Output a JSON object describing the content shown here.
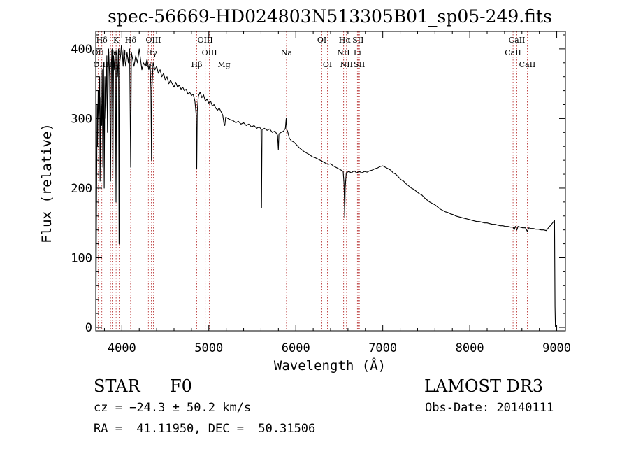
{
  "chart_data": {
    "type": "line",
    "title": "spec-56669-HD024803N513305B01_sp05-249.fits",
    "xlabel": "Wavelength (Å)",
    "ylabel": "Flux (relative)",
    "xlim": [
      3700,
      9100
    ],
    "ylim": [
      -5,
      425
    ],
    "x_ticks": [
      4000,
      5000,
      6000,
      7000,
      8000,
      9000
    ],
    "y_ticks": [
      0,
      100,
      200,
      300,
      400
    ],
    "grid": false,
    "series": [
      {
        "name": "flux",
        "points": [
          [
            3700,
            0
          ],
          [
            3704,
            60
          ],
          [
            3708,
            160
          ],
          [
            3712,
            240
          ],
          [
            3716,
            320
          ],
          [
            3720,
            260
          ],
          [
            3728,
            340
          ],
          [
            3735,
            300
          ],
          [
            3745,
            360
          ],
          [
            3750,
            210
          ],
          [
            3758,
            330
          ],
          [
            3768,
            290
          ],
          [
            3774,
            370
          ],
          [
            3782,
            230
          ],
          [
            3790,
            380
          ],
          [
            3797,
            200
          ],
          [
            3805,
            360
          ],
          [
            3815,
            300
          ],
          [
            3828,
            390
          ],
          [
            3835,
            280
          ],
          [
            3848,
            400
          ],
          [
            3860,
            360
          ],
          [
            3870,
            210
          ],
          [
            3880,
            380
          ],
          [
            3888,
            400
          ],
          [
            3897,
            215
          ],
          [
            3905,
            390
          ],
          [
            3915,
            370
          ],
          [
            3925,
            395
          ],
          [
            3933,
            180
          ],
          [
            3940,
            395
          ],
          [
            3950,
            360
          ],
          [
            3962,
            400
          ],
          [
            3968,
            120
          ],
          [
            3975,
            380
          ],
          [
            3985,
            390
          ],
          [
            3995,
            405
          ],
          [
            4005,
            395
          ],
          [
            4015,
            375
          ],
          [
            4025,
            400
          ],
          [
            4035,
            385
          ],
          [
            4045,
            375
          ],
          [
            4060,
            395
          ],
          [
            4075,
            380
          ],
          [
            4090,
            400
          ],
          [
            4102,
            230
          ],
          [
            4110,
            395
          ],
          [
            4125,
            385
          ],
          [
            4140,
            375
          ],
          [
            4160,
            390
          ],
          [
            4180,
            380
          ],
          [
            4200,
            400
          ],
          [
            4215,
            385
          ],
          [
            4230,
            370
          ],
          [
            4250,
            380
          ],
          [
            4270,
            375
          ],
          [
            4290,
            385
          ],
          [
            4310,
            370
          ],
          [
            4325,
            380
          ],
          [
            4335,
            340
          ],
          [
            4341,
            240
          ],
          [
            4347,
            345
          ],
          [
            4360,
            380
          ],
          [
            4380,
            370
          ],
          [
            4400,
            375
          ],
          [
            4420,
            365
          ],
          [
            4440,
            370
          ],
          [
            4460,
            360
          ],
          [
            4480,
            365
          ],
          [
            4500,
            355
          ],
          [
            4520,
            360
          ],
          [
            4540,
            350
          ],
          [
            4560,
            355
          ],
          [
            4580,
            350
          ],
          [
            4600,
            345
          ],
          [
            4620,
            352
          ],
          [
            4640,
            345
          ],
          [
            4660,
            348
          ],
          [
            4680,
            342
          ],
          [
            4700,
            345
          ],
          [
            4720,
            340
          ],
          [
            4740,
            342
          ],
          [
            4760,
            335
          ],
          [
            4780,
            338
          ],
          [
            4800,
            333
          ],
          [
            4820,
            335
          ],
          [
            4840,
            325
          ],
          [
            4855,
            305
          ],
          [
            4861,
            228
          ],
          [
            4867,
            310
          ],
          [
            4880,
            332
          ],
          [
            4900,
            338
          ],
          [
            4920,
            330
          ],
          [
            4940,
            334
          ],
          [
            4960,
            325
          ],
          [
            4980,
            328
          ],
          [
            5000,
            322
          ],
          [
            5020,
            325
          ],
          [
            5040,
            318
          ],
          [
            5060,
            320
          ],
          [
            5080,
            315
          ],
          [
            5100,
            312
          ],
          [
            5120,
            315
          ],
          [
            5140,
            310
          ],
          [
            5160,
            305
          ],
          [
            5175,
            292
          ],
          [
            5183,
            290
          ],
          [
            5195,
            302
          ],
          [
            5220,
            300
          ],
          [
            5250,
            298
          ],
          [
            5280,
            297
          ],
          [
            5310,
            294
          ],
          [
            5340,
            296
          ],
          [
            5370,
            292
          ],
          [
            5400,
            294
          ],
          [
            5430,
            290
          ],
          [
            5460,
            292
          ],
          [
            5490,
            288
          ],
          [
            5520,
            290
          ],
          [
            5550,
            286
          ],
          [
            5580,
            288
          ],
          [
            5600,
            285
          ],
          [
            5606,
            172
          ],
          [
            5612,
            284
          ],
          [
            5640,
            286
          ],
          [
            5670,
            283
          ],
          [
            5700,
            285
          ],
          [
            5730,
            280
          ],
          [
            5760,
            282
          ],
          [
            5790,
            276
          ],
          [
            5800,
            255
          ],
          [
            5806,
            278
          ],
          [
            5830,
            280
          ],
          [
            5860,
            282
          ],
          [
            5880,
            286
          ],
          [
            5890,
            300
          ],
          [
            5896,
            284
          ],
          [
            5905,
            282
          ],
          [
            5925,
            272
          ],
          [
            5950,
            268
          ],
          [
            5980,
            266
          ],
          [
            6010,
            262
          ],
          [
            6040,
            258
          ],
          [
            6070,
            255
          ],
          [
            6100,
            252
          ],
          [
            6130,
            250
          ],
          [
            6160,
            248
          ],
          [
            6190,
            245
          ],
          [
            6220,
            244
          ],
          [
            6250,
            242
          ],
          [
            6280,
            240
          ],
          [
            6310,
            238
          ],
          [
            6340,
            236
          ],
          [
            6370,
            234
          ],
          [
            6400,
            235
          ],
          [
            6430,
            232
          ],
          [
            6460,
            230
          ],
          [
            6490,
            228
          ],
          [
            6520,
            226
          ],
          [
            6545,
            224
          ],
          [
            6555,
            205
          ],
          [
            6562,
            158
          ],
          [
            6568,
            200
          ],
          [
            6580,
            222
          ],
          [
            6610,
            224
          ],
          [
            6640,
            222
          ],
          [
            6670,
            225
          ],
          [
            6700,
            222
          ],
          [
            6730,
            224
          ],
          [
            6760,
            222
          ],
          [
            6790,
            224
          ],
          [
            6820,
            223
          ],
          [
            6850,
            225
          ],
          [
            6880,
            226
          ],
          [
            6910,
            228
          ],
          [
            6940,
            229
          ],
          [
            6970,
            231
          ],
          [
            7000,
            232
          ],
          [
            7030,
            230
          ],
          [
            7060,
            228
          ],
          [
            7090,
            226
          ],
          [
            7120,
            222
          ],
          [
            7150,
            220
          ],
          [
            7180,
            216
          ],
          [
            7210,
            212
          ],
          [
            7240,
            210
          ],
          [
            7270,
            206
          ],
          [
            7300,
            203
          ],
          [
            7330,
            200
          ],
          [
            7360,
            198
          ],
          [
            7390,
            195
          ],
          [
            7420,
            192
          ],
          [
            7450,
            190
          ],
          [
            7480,
            186
          ],
          [
            7510,
            183
          ],
          [
            7540,
            180
          ],
          [
            7570,
            178
          ],
          [
            7600,
            176
          ],
          [
            7630,
            173
          ],
          [
            7660,
            170
          ],
          [
            7690,
            168
          ],
          [
            7720,
            166
          ],
          [
            7750,
            165
          ],
          [
            7780,
            163
          ],
          [
            7810,
            162
          ],
          [
            7840,
            160
          ],
          [
            7870,
            159
          ],
          [
            7900,
            158
          ],
          [
            7930,
            157
          ],
          [
            7960,
            156
          ],
          [
            7990,
            155
          ],
          [
            8020,
            154
          ],
          [
            8050,
            153
          ],
          [
            8080,
            152
          ],
          [
            8110,
            152
          ],
          [
            8140,
            151
          ],
          [
            8170,
            150
          ],
          [
            8200,
            150
          ],
          [
            8230,
            149
          ],
          [
            8260,
            148
          ],
          [
            8290,
            148
          ],
          [
            8320,
            147
          ],
          [
            8350,
            146
          ],
          [
            8380,
            146
          ],
          [
            8410,
            145
          ],
          [
            8440,
            145
          ],
          [
            8470,
            144
          ],
          [
            8498,
            144
          ],
          [
            8510,
            140
          ],
          [
            8525,
            145
          ],
          [
            8542,
            140
          ],
          [
            8555,
            145
          ],
          [
            8580,
            144
          ],
          [
            8610,
            143
          ],
          [
            8640,
            143
          ],
          [
            8662,
            138
          ],
          [
            8680,
            143
          ],
          [
            8700,
            142
          ],
          [
            8730,
            142
          ],
          [
            8760,
            141
          ],
          [
            8790,
            141
          ],
          [
            8820,
            140
          ],
          [
            8850,
            140
          ],
          [
            8880,
            139
          ],
          [
            8910,
            144
          ],
          [
            8940,
            148
          ],
          [
            8965,
            152
          ],
          [
            8975,
            154
          ],
          [
            8980,
            30
          ],
          [
            8985,
            0
          ]
        ]
      }
    ],
    "lines": [
      {
        "label": "Hδ",
        "x": 3770,
        "row": 1
      },
      {
        "label": "K",
        "x": 3934,
        "row": 1
      },
      {
        "label": "Hδ",
        "x": 4101,
        "row": 1
      },
      {
        "label": "OIII",
        "x": 4363,
        "row": 1
      },
      {
        "label": "OIII",
        "x": 4959,
        "row": 1
      },
      {
        "label": "OI",
        "x": 6300,
        "row": 1
      },
      {
        "label": "Hα",
        "x": 6563,
        "row": 1
      },
      {
        "label": "SII",
        "x": 6716,
        "row": 1
      },
      {
        "label": "CaII",
        "x": 8542,
        "row": 1
      },
      {
        "label": "OII",
        "x": 3727,
        "row": 2
      },
      {
        "label": "He",
        "x": 3889,
        "row": 2
      },
      {
        "label": "SIII",
        "x": 3970,
        "row": 2
      },
      {
        "label": "Hγ",
        "x": 4340,
        "row": 2
      },
      {
        "label": "OIII",
        "x": 5007,
        "row": 2
      },
      {
        "label": "Na",
        "x": 5893,
        "row": 2
      },
      {
        "label": "NII",
        "x": 6548,
        "row": 2
      },
      {
        "label": "Li",
        "x": 6708,
        "row": 2
      },
      {
        "label": "CaII",
        "x": 8498,
        "row": 2
      },
      {
        "label": "OIII",
        "x": 3760,
        "row": 3
      },
      {
        "label": "Hε",
        "x": 3870,
        "row": 3
      },
      {
        "label": "G",
        "x": 4305,
        "row": 3
      },
      {
        "label": "Hβ",
        "x": 4861,
        "row": 3
      },
      {
        "label": "Mg",
        "x": 5175,
        "row": 3
      },
      {
        "label": "OI",
        "x": 6364,
        "row": 3
      },
      {
        "label": "NII",
        "x": 6583,
        "row": 3
      },
      {
        "label": "SII",
        "x": 6731,
        "row": 3
      },
      {
        "label": "CaII",
        "x": 8662,
        "row": 3
      }
    ]
  },
  "info": {
    "object_class": "STAR",
    "subclass": "F0",
    "survey": "LAMOST DR3",
    "redshift": "cz = −24.3 ± 50.2 km/s",
    "obs_date": "Obs-Date: 20140111",
    "coords": "RA =  41.11950, DEC =  50.31506"
  }
}
